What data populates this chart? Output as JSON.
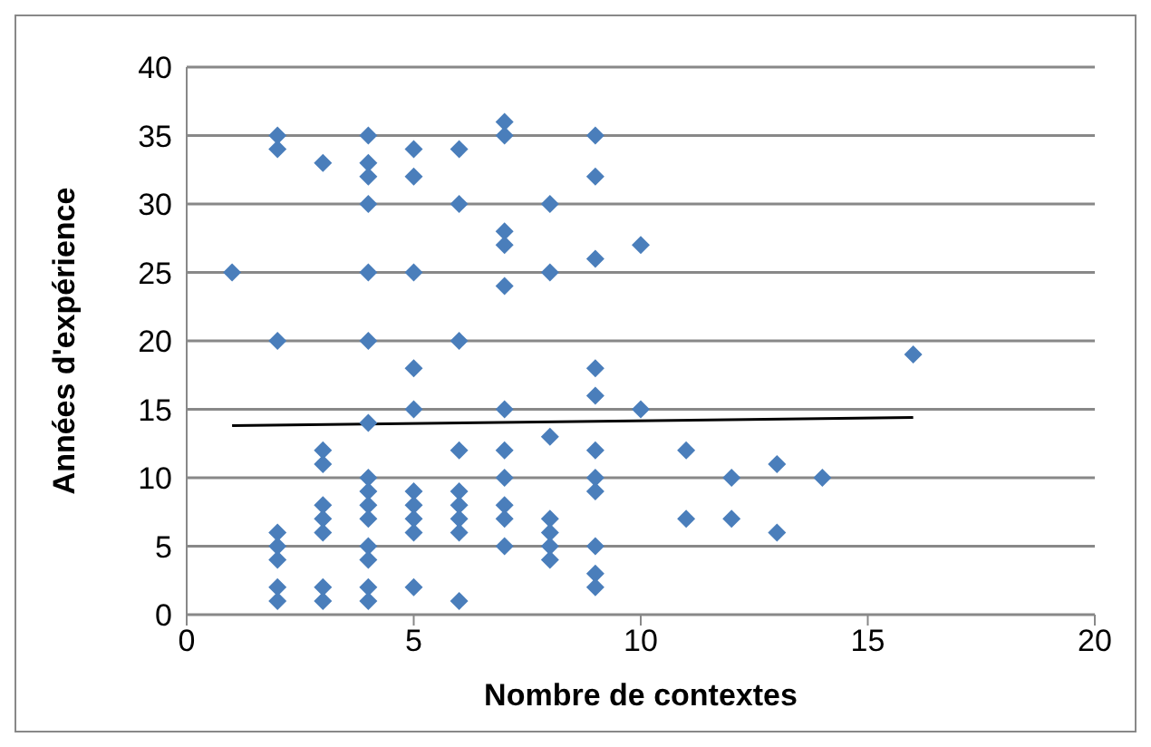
{
  "chart_data": {
    "type": "scatter",
    "xlabel": "Nombre de contextes",
    "ylabel": "Années d'expérience",
    "xlim": [
      0,
      20
    ],
    "xticks": [
      0,
      5,
      10,
      15,
      20
    ],
    "ylim": [
      0,
      40
    ],
    "yticks": [
      0,
      5,
      10,
      15,
      20,
      25,
      30,
      35,
      40
    ],
    "grid": "y",
    "marker": "diamond",
    "series": [
      {
        "color": "#4a7ebb",
        "x": [
          1,
          2,
          2,
          2,
          2,
          2,
          2,
          2,
          2,
          3,
          3,
          3,
          3,
          3,
          3,
          3,
          3,
          4,
          4,
          4,
          4,
          4,
          4,
          4,
          4,
          4,
          4,
          4,
          4,
          4,
          4,
          4,
          5,
          5,
          5,
          5,
          5,
          5,
          5,
          5,
          5,
          5,
          6,
          6,
          6,
          6,
          6,
          6,
          6,
          6,
          6,
          7,
          7,
          7,
          7,
          7,
          7,
          7,
          7,
          7,
          7,
          7,
          8,
          8,
          8,
          8,
          8,
          8,
          8,
          9,
          9,
          9,
          9,
          9,
          9,
          9,
          9,
          9,
          9,
          9,
          10,
          10,
          11,
          11,
          12,
          12,
          13,
          13,
          14,
          16
        ],
        "values": [
          25,
          35,
          34,
          20,
          6,
          5,
          4,
          2,
          1,
          33,
          12,
          11,
          8,
          7,
          6,
          2,
          1,
          35,
          33,
          32,
          30,
          25,
          20,
          14,
          10,
          9,
          8,
          7,
          5,
          4,
          2,
          1,
          34,
          32,
          25,
          18,
          15,
          9,
          8,
          7,
          6,
          2,
          34,
          30,
          20,
          12,
          9,
          8,
          7,
          6,
          1,
          36,
          35,
          28,
          27,
          24,
          15,
          12,
          10,
          8,
          7,
          5,
          30,
          25,
          13,
          7,
          6,
          5,
          4,
          35,
          32,
          26,
          18,
          16,
          12,
          10,
          9,
          5,
          3,
          2,
          27,
          15,
          12,
          7,
          10,
          7,
          11,
          6,
          10,
          19
        ]
      },
      {
        "type": "line",
        "color": "#000000",
        "marker": "none",
        "x": [
          1,
          16
        ],
        "values": [
          13.8,
          14.4
        ]
      }
    ]
  }
}
